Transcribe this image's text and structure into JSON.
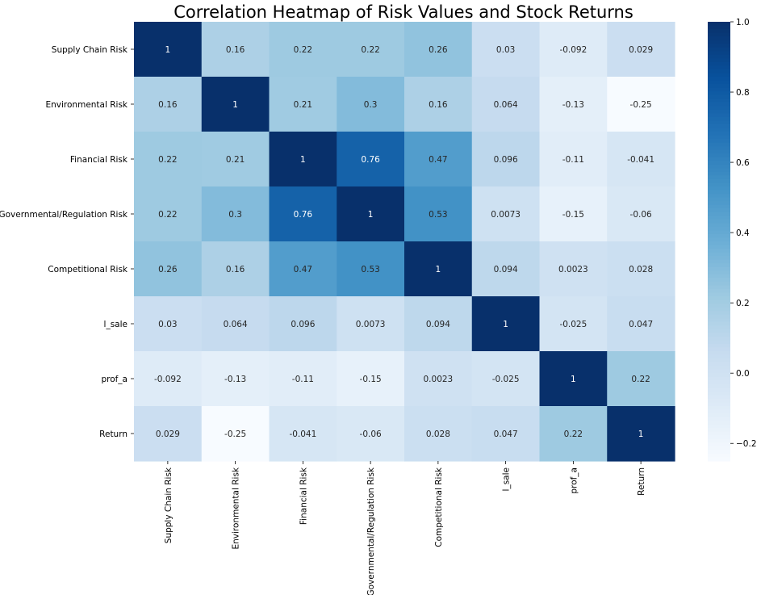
{
  "chart_data": {
    "type": "heatmap",
    "title": "Correlation Heatmap of Risk Values and Stock Returns",
    "row_labels": [
      "Supply Chain Risk",
      "Environmental Risk",
      "Financial Risk",
      "Governmental/Regulation Risk",
      "Competitional Risk",
      "l_sale",
      "prof_a",
      "Return"
    ],
    "col_labels": [
      "Supply Chain Risk",
      "Environmental Risk",
      "Financial Risk",
      "Governmental/Regulation Risk",
      "Competitional Risk",
      "l_sale",
      "prof_a",
      "Return"
    ],
    "values": [
      [
        1,
        0.16,
        0.22,
        0.22,
        0.26,
        0.03,
        -0.092,
        0.029
      ],
      [
        0.16,
        1,
        0.21,
        0.3,
        0.16,
        0.064,
        -0.13,
        -0.25
      ],
      [
        0.22,
        0.21,
        1,
        0.76,
        0.47,
        0.096,
        -0.11,
        -0.041
      ],
      [
        0.22,
        0.3,
        0.76,
        1,
        0.53,
        0.0073,
        -0.15,
        -0.06
      ],
      [
        0.26,
        0.16,
        0.47,
        0.53,
        1,
        0.094,
        0.0023,
        0.028
      ],
      [
        0.03,
        0.064,
        0.096,
        0.0073,
        0.094,
        1,
        -0.025,
        0.047
      ],
      [
        -0.092,
        -0.13,
        -0.11,
        -0.15,
        0.0023,
        -0.025,
        1,
        0.22
      ],
      [
        0.029,
        -0.25,
        -0.041,
        -0.06,
        0.028,
        0.047,
        0.22,
        1
      ]
    ],
    "colormap": "Blues",
    "vmin": -0.25,
    "vmax": 1,
    "colorbar_ticks": [
      1.0,
      0.8,
      0.6,
      0.4,
      0.2,
      0.0,
      -0.2
    ],
    "colorbar_tick_labels": [
      "1.0",
      "0.8",
      "0.6",
      "0.4",
      "0.2",
      "0.0",
      "−0.2"
    ],
    "annotated": true
  }
}
